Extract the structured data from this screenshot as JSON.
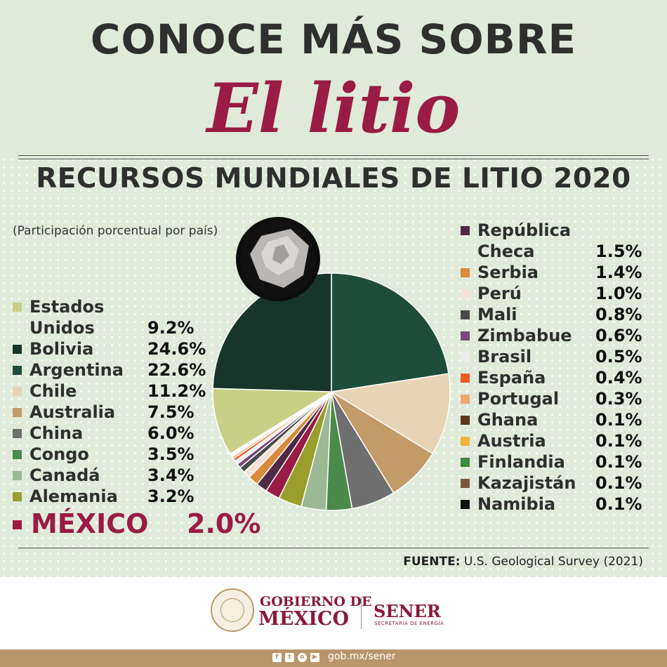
{
  "header": {
    "line1": "CONOCE MÁS SOBRE",
    "line2": "El litio"
  },
  "chart_data": {
    "type": "pie",
    "title": "RECURSOS MUNDIALES DE LITIO 2020",
    "subtitle": "(Participación porcentual por país)",
    "unit": "%",
    "slices": [
      {
        "name": "Argentina",
        "value": 22.6,
        "label": "22.6%",
        "color": "#1e4d3c"
      },
      {
        "name": "Chile",
        "value": 11.2,
        "label": "11.2%",
        "color": "#e6d4b4"
      },
      {
        "name": "Australia",
        "value": 7.5,
        "label": "7.5%",
        "color": "#c39b68"
      },
      {
        "name": "China",
        "value": 6.0,
        "label": "6.0%",
        "color": "#6f6f6f"
      },
      {
        "name": "Congo",
        "value": 3.5,
        "label": "3.5%",
        "color": "#4a8a4a"
      },
      {
        "name": "Canadá",
        "value": 3.4,
        "label": "3.4%",
        "color": "#9cb894"
      },
      {
        "name": "Alemania",
        "value": 3.2,
        "label": "3.2%",
        "color": "#9a9e2c"
      },
      {
        "name": "MÉXICO",
        "value": 2.0,
        "label": "2.0%",
        "color": "#9a1b45"
      },
      {
        "name": "República Checa",
        "value": 1.5,
        "label": "1.5%",
        "color": "#4f2a45"
      },
      {
        "name": "Serbia",
        "value": 1.4,
        "label": "1.4%",
        "color": "#d98a3b"
      },
      {
        "name": "Perú",
        "value": 1.0,
        "label": "1.0%",
        "color": "#f6e1d6"
      },
      {
        "name": "Mali",
        "value": 0.8,
        "label": "0.8%",
        "color": "#4a4a4a"
      },
      {
        "name": "Zimbabue",
        "value": 0.6,
        "label": "0.6%",
        "color": "#7a4a78"
      },
      {
        "name": "Brasil",
        "value": 0.5,
        "label": "0.5%",
        "color": "#ececec"
      },
      {
        "name": "España",
        "value": 0.4,
        "label": "0.4%",
        "color": "#f05a1e"
      },
      {
        "name": "Portugal",
        "value": 0.3,
        "label": "0.3%",
        "color": "#f2a66c"
      },
      {
        "name": "Ghana",
        "value": 0.1,
        "label": "0.1%",
        "color": "#5a3a18"
      },
      {
        "name": "Austria",
        "value": 0.1,
        "label": "0.1%",
        "color": "#f5b33a"
      },
      {
        "name": "Finlandia",
        "value": 0.1,
        "label": "0.1%",
        "color": "#3e8a3e"
      },
      {
        "name": "Kazajistán",
        "value": 0.1,
        "label": "0.1%",
        "color": "#7a5a3a"
      },
      {
        "name": "Namibia",
        "value": 0.1,
        "label": "0.1%",
        "color": "#111111"
      },
      {
        "name": "Estados Unidos",
        "value": 9.2,
        "label": "9.2%",
        "color": "#c8cf86"
      },
      {
        "name": "Bolivia",
        "value": 24.6,
        "label": "24.6%",
        "color": "#18352b"
      }
    ],
    "legend_left": [
      {
        "name_line1": "Estados",
        "name_line2": "Unidos",
        "label": "9.2%",
        "color": "#c8cf86"
      },
      {
        "name": "Bolivia",
        "label": "24.6%",
        "color": "#18352b"
      },
      {
        "name": "Argentina",
        "label": "22.6%",
        "color": "#1e4d3c"
      },
      {
        "name": "Chile",
        "label": "11.2%",
        "color": "#e6d4b4"
      },
      {
        "name": "Australia",
        "label": "7.5%",
        "color": "#c39b68"
      },
      {
        "name": "China",
        "label": "6.0%",
        "color": "#6f6f6f"
      },
      {
        "name": "Congo",
        "label": "3.5%",
        "color": "#4a8a4a"
      },
      {
        "name": "Canadá",
        "label": "3.4%",
        "color": "#9cb894"
      },
      {
        "name": "Alemania",
        "label": "3.2%",
        "color": "#9a9e2c"
      }
    ],
    "highlight": {
      "name": "MÉXICO",
      "label": "2.0%",
      "color": "#9a1b45"
    },
    "legend_right": [
      {
        "name_line1": "República",
        "name_line2": "Checa",
        "label": "1.5%",
        "color": "#4f2a45"
      },
      {
        "name": "Serbia",
        "label": "1.4%",
        "color": "#d98a3b"
      },
      {
        "name": "Perú",
        "label": "1.0%",
        "color": "#f6e1d6"
      },
      {
        "name": "Mali",
        "label": "0.8%",
        "color": "#4a4a4a"
      },
      {
        "name": "Zimbabue",
        "label": "0.6%",
        "color": "#7a4a78"
      },
      {
        "name": "Brasil",
        "label": "0.5%",
        "color": "#ececec"
      },
      {
        "name": "España",
        "label": "0.4%",
        "color": "#f05a1e"
      },
      {
        "name": "Portugal",
        "label": "0.3%",
        "color": "#f2a66c"
      },
      {
        "name": "Ghana",
        "label": "0.1%",
        "color": "#5a3a18"
      },
      {
        "name": "Austria",
        "label": "0.1%",
        "color": "#f5b33a"
      },
      {
        "name": "Finlandia",
        "label": "0.1%",
        "color": "#3e8a3e"
      },
      {
        "name": "Kazajistán",
        "label": "0.1%",
        "color": "#7a5a3a"
      },
      {
        "name": "Namibia",
        "label": "0.1%",
        "color": "#111111"
      }
    ]
  },
  "source": {
    "label": "FUENTE:",
    "text": "U.S. Geological Survey (2021)"
  },
  "footer": {
    "gob_line1": "GOBIERNO DE",
    "gob_line2": "MÉXICO",
    "sener": "SENER",
    "sener_sub": "SECRETARÍA DE ENERGÍA",
    "url": "gob.mx/sener",
    "social_icons": [
      "facebook-icon",
      "twitter-icon",
      "instagram-icon",
      "youtube-icon"
    ]
  },
  "colors": {
    "background": "#dfeadb",
    "accent": "#9a1b45",
    "footer_bar": "#b8966a"
  }
}
